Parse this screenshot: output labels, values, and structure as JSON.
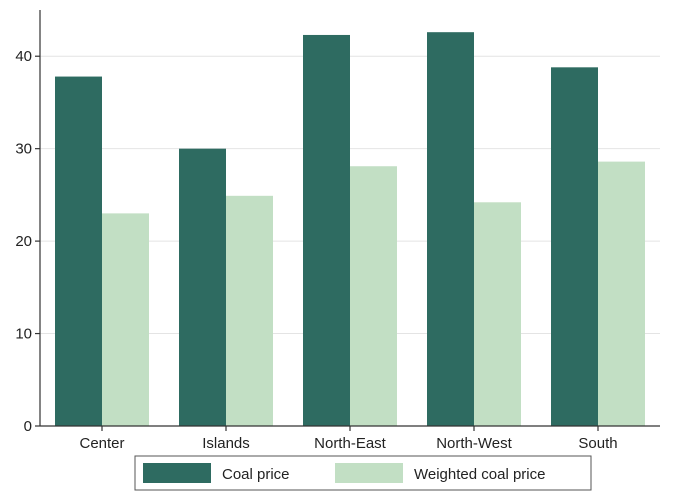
{
  "chart_data": {
    "type": "bar",
    "title": "",
    "xlabel": "",
    "ylabel": "",
    "categories": [
      "Center",
      "Islands",
      "North-East",
      "North-West",
      "South"
    ],
    "series": [
      {
        "name": "Coal price",
        "values": [
          37.8,
          30.0,
          42.3,
          42.6,
          38.8
        ],
        "color": "#2e6b61"
      },
      {
        "name": "Weighted coal price",
        "values": [
          23.0,
          24.9,
          28.1,
          24.2,
          28.6
        ],
        "color": "#c2dfc4"
      }
    ],
    "ylim": [
      0,
      45
    ],
    "yticks": [
      "0",
      "10",
      "20",
      "30",
      "40"
    ],
    "grid": true,
    "legend_position": "bottom"
  }
}
